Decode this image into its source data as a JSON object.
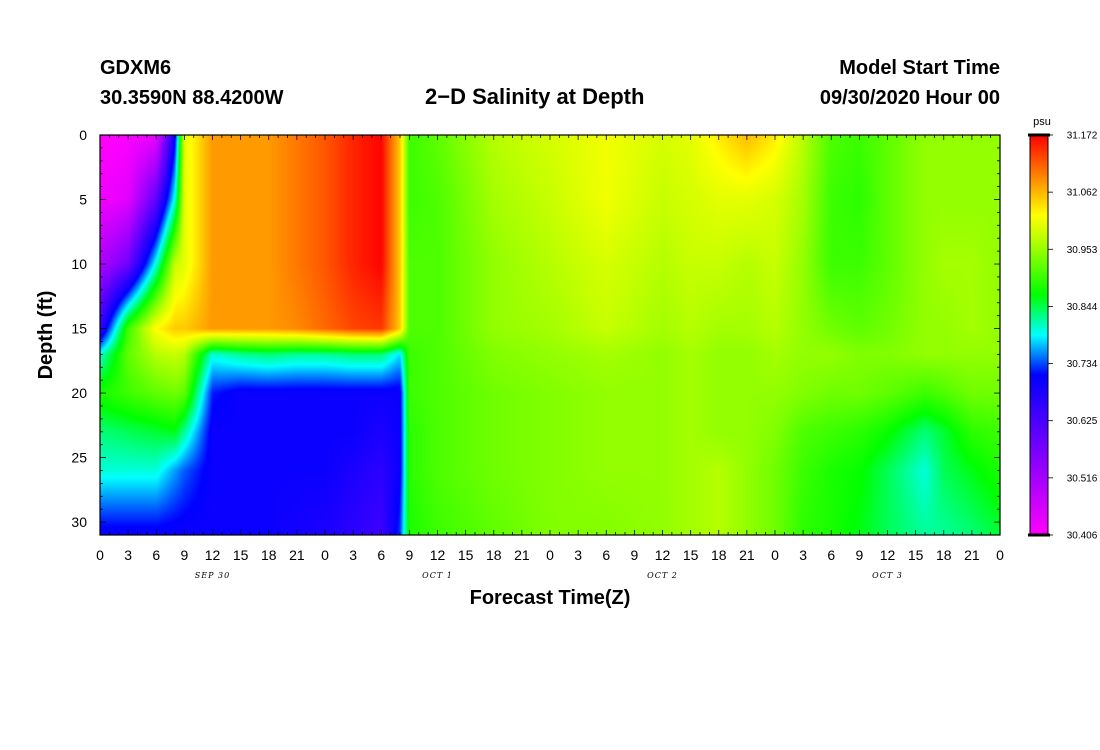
{
  "header": {
    "station": "GDXM6",
    "coords": "30.3590N 88.4200W",
    "title": "2−D Salinity at Depth",
    "model_start_label": "Model Start Time",
    "model_start_value": "09/30/2020 Hour 00"
  },
  "chart_data": {
    "type": "heatmap",
    "title": "2−D Salinity at Depth",
    "xlabel": "Forecast Time(Z)",
    "ylabel": "Depth (ft)",
    "x_tick_labels": [
      "0",
      "3",
      "6",
      "9",
      "12",
      "15",
      "18",
      "21",
      "0",
      "3",
      "6",
      "9",
      "12",
      "15",
      "18",
      "21",
      "0",
      "3",
      "6",
      "9",
      "12",
      "15",
      "18",
      "21",
      "0",
      "3",
      "6",
      "9",
      "12",
      "15",
      "18",
      "21",
      "0"
    ],
    "xlim_hours": [
      0,
      96
    ],
    "day_labels": [
      {
        "label": "SEP 30",
        "hour": 12
      },
      {
        "label": "OCT 1",
        "hour": 36
      },
      {
        "label": "OCT 2",
        "hour": 60
      },
      {
        "label": "OCT 3",
        "hour": 84
      }
    ],
    "y_ticks": [
      0,
      5,
      10,
      15,
      20,
      25,
      30
    ],
    "ylim": [
      0,
      31
    ],
    "y_inverted": true,
    "colorbar": {
      "unit": "psu",
      "min": 30.406,
      "max": 31.172,
      "labels": [
        "31.172",
        "31.062",
        "30.953",
        "30.844",
        "30.734",
        "30.625",
        "30.516",
        "30.406"
      ]
    },
    "depth_grid": [
      0,
      5,
      10,
      15,
      17,
      20,
      23,
      26,
      31
    ],
    "time_grid": [
      0,
      3,
      6,
      8,
      9,
      12,
      15,
      18,
      21,
      24,
      27,
      30,
      32,
      33,
      36,
      42,
      48,
      54,
      60,
      63,
      66,
      69,
      72,
      75,
      78,
      81,
      84,
      88,
      90,
      93,
      96
    ],
    "values": [
      [
        30.4,
        30.41,
        30.43,
        30.7,
        31.0,
        31.08,
        31.08,
        31.08,
        31.1,
        31.12,
        31.15,
        31.17,
        31.05,
        30.9,
        30.92,
        30.97,
        30.99,
        31.01,
        30.99,
        31.0,
        31.03,
        31.06,
        31.03,
        30.97,
        30.91,
        30.9,
        30.92,
        30.95,
        30.95,
        30.95,
        30.95
      ],
      [
        30.42,
        30.44,
        30.6,
        30.8,
        31.0,
        31.08,
        31.08,
        31.08,
        31.1,
        31.12,
        31.15,
        31.17,
        31.05,
        30.9,
        30.91,
        30.96,
        30.98,
        31.01,
        30.98,
        30.99,
        31.0,
        31.0,
        30.99,
        30.96,
        30.9,
        30.89,
        30.92,
        30.95,
        30.95,
        30.95,
        30.95
      ],
      [
        30.5,
        30.58,
        30.8,
        30.98,
        31.0,
        31.08,
        31.08,
        31.08,
        31.1,
        31.12,
        31.15,
        31.17,
        31.05,
        30.91,
        30.91,
        30.95,
        30.97,
        30.99,
        30.97,
        30.98,
        30.98,
        30.97,
        30.98,
        30.95,
        30.9,
        30.9,
        30.92,
        30.95,
        30.96,
        30.96,
        30.95
      ],
      [
        30.65,
        30.9,
        31.02,
        31.05,
        31.05,
        31.08,
        31.08,
        31.08,
        31.09,
        31.11,
        31.13,
        31.14,
        31.05,
        30.91,
        30.91,
        30.95,
        30.96,
        30.98,
        30.96,
        30.97,
        30.96,
        30.96,
        30.97,
        30.95,
        30.93,
        30.92,
        30.93,
        30.95,
        30.95,
        30.96,
        30.95
      ],
      [
        30.8,
        30.92,
        30.97,
        30.98,
        30.97,
        30.8,
        30.82,
        30.83,
        30.82,
        30.82,
        30.83,
        30.83,
        30.78,
        30.9,
        30.91,
        30.94,
        30.95,
        30.96,
        30.95,
        30.96,
        30.95,
        30.95,
        30.96,
        30.95,
        30.95,
        30.94,
        30.94,
        30.95,
        30.95,
        30.95,
        30.95
      ],
      [
        30.88,
        30.9,
        30.92,
        30.93,
        30.92,
        30.72,
        30.7,
        30.7,
        30.7,
        30.7,
        30.7,
        30.7,
        30.7,
        30.9,
        30.91,
        30.93,
        30.94,
        30.95,
        30.95,
        30.96,
        30.95,
        30.95,
        30.95,
        30.94,
        30.93,
        30.93,
        30.92,
        30.9,
        30.91,
        30.93,
        30.93
      ],
      [
        30.83,
        30.84,
        30.85,
        30.86,
        30.82,
        30.7,
        30.7,
        30.7,
        30.7,
        30.7,
        30.7,
        30.68,
        30.7,
        30.89,
        30.91,
        30.93,
        30.94,
        30.95,
        30.95,
        30.96,
        30.95,
        30.95,
        30.94,
        30.91,
        30.9,
        30.89,
        30.87,
        30.83,
        30.85,
        30.89,
        30.9
      ],
      [
        30.8,
        30.8,
        30.8,
        30.76,
        30.74,
        30.7,
        30.7,
        30.7,
        30.7,
        30.7,
        30.68,
        30.66,
        30.7,
        30.89,
        30.91,
        30.93,
        30.94,
        30.95,
        30.95,
        30.96,
        30.97,
        30.95,
        30.93,
        30.9,
        30.88,
        30.87,
        30.84,
        30.8,
        30.84,
        30.86,
        30.88
      ],
      [
        30.7,
        30.7,
        30.7,
        30.7,
        30.7,
        30.7,
        30.7,
        30.7,
        30.69,
        30.68,
        30.66,
        30.64,
        30.73,
        30.88,
        30.9,
        30.92,
        30.94,
        30.94,
        30.95,
        30.96,
        30.97,
        30.95,
        30.93,
        30.89,
        30.88,
        30.86,
        30.84,
        30.82,
        30.82,
        30.83,
        30.85
      ]
    ]
  }
}
